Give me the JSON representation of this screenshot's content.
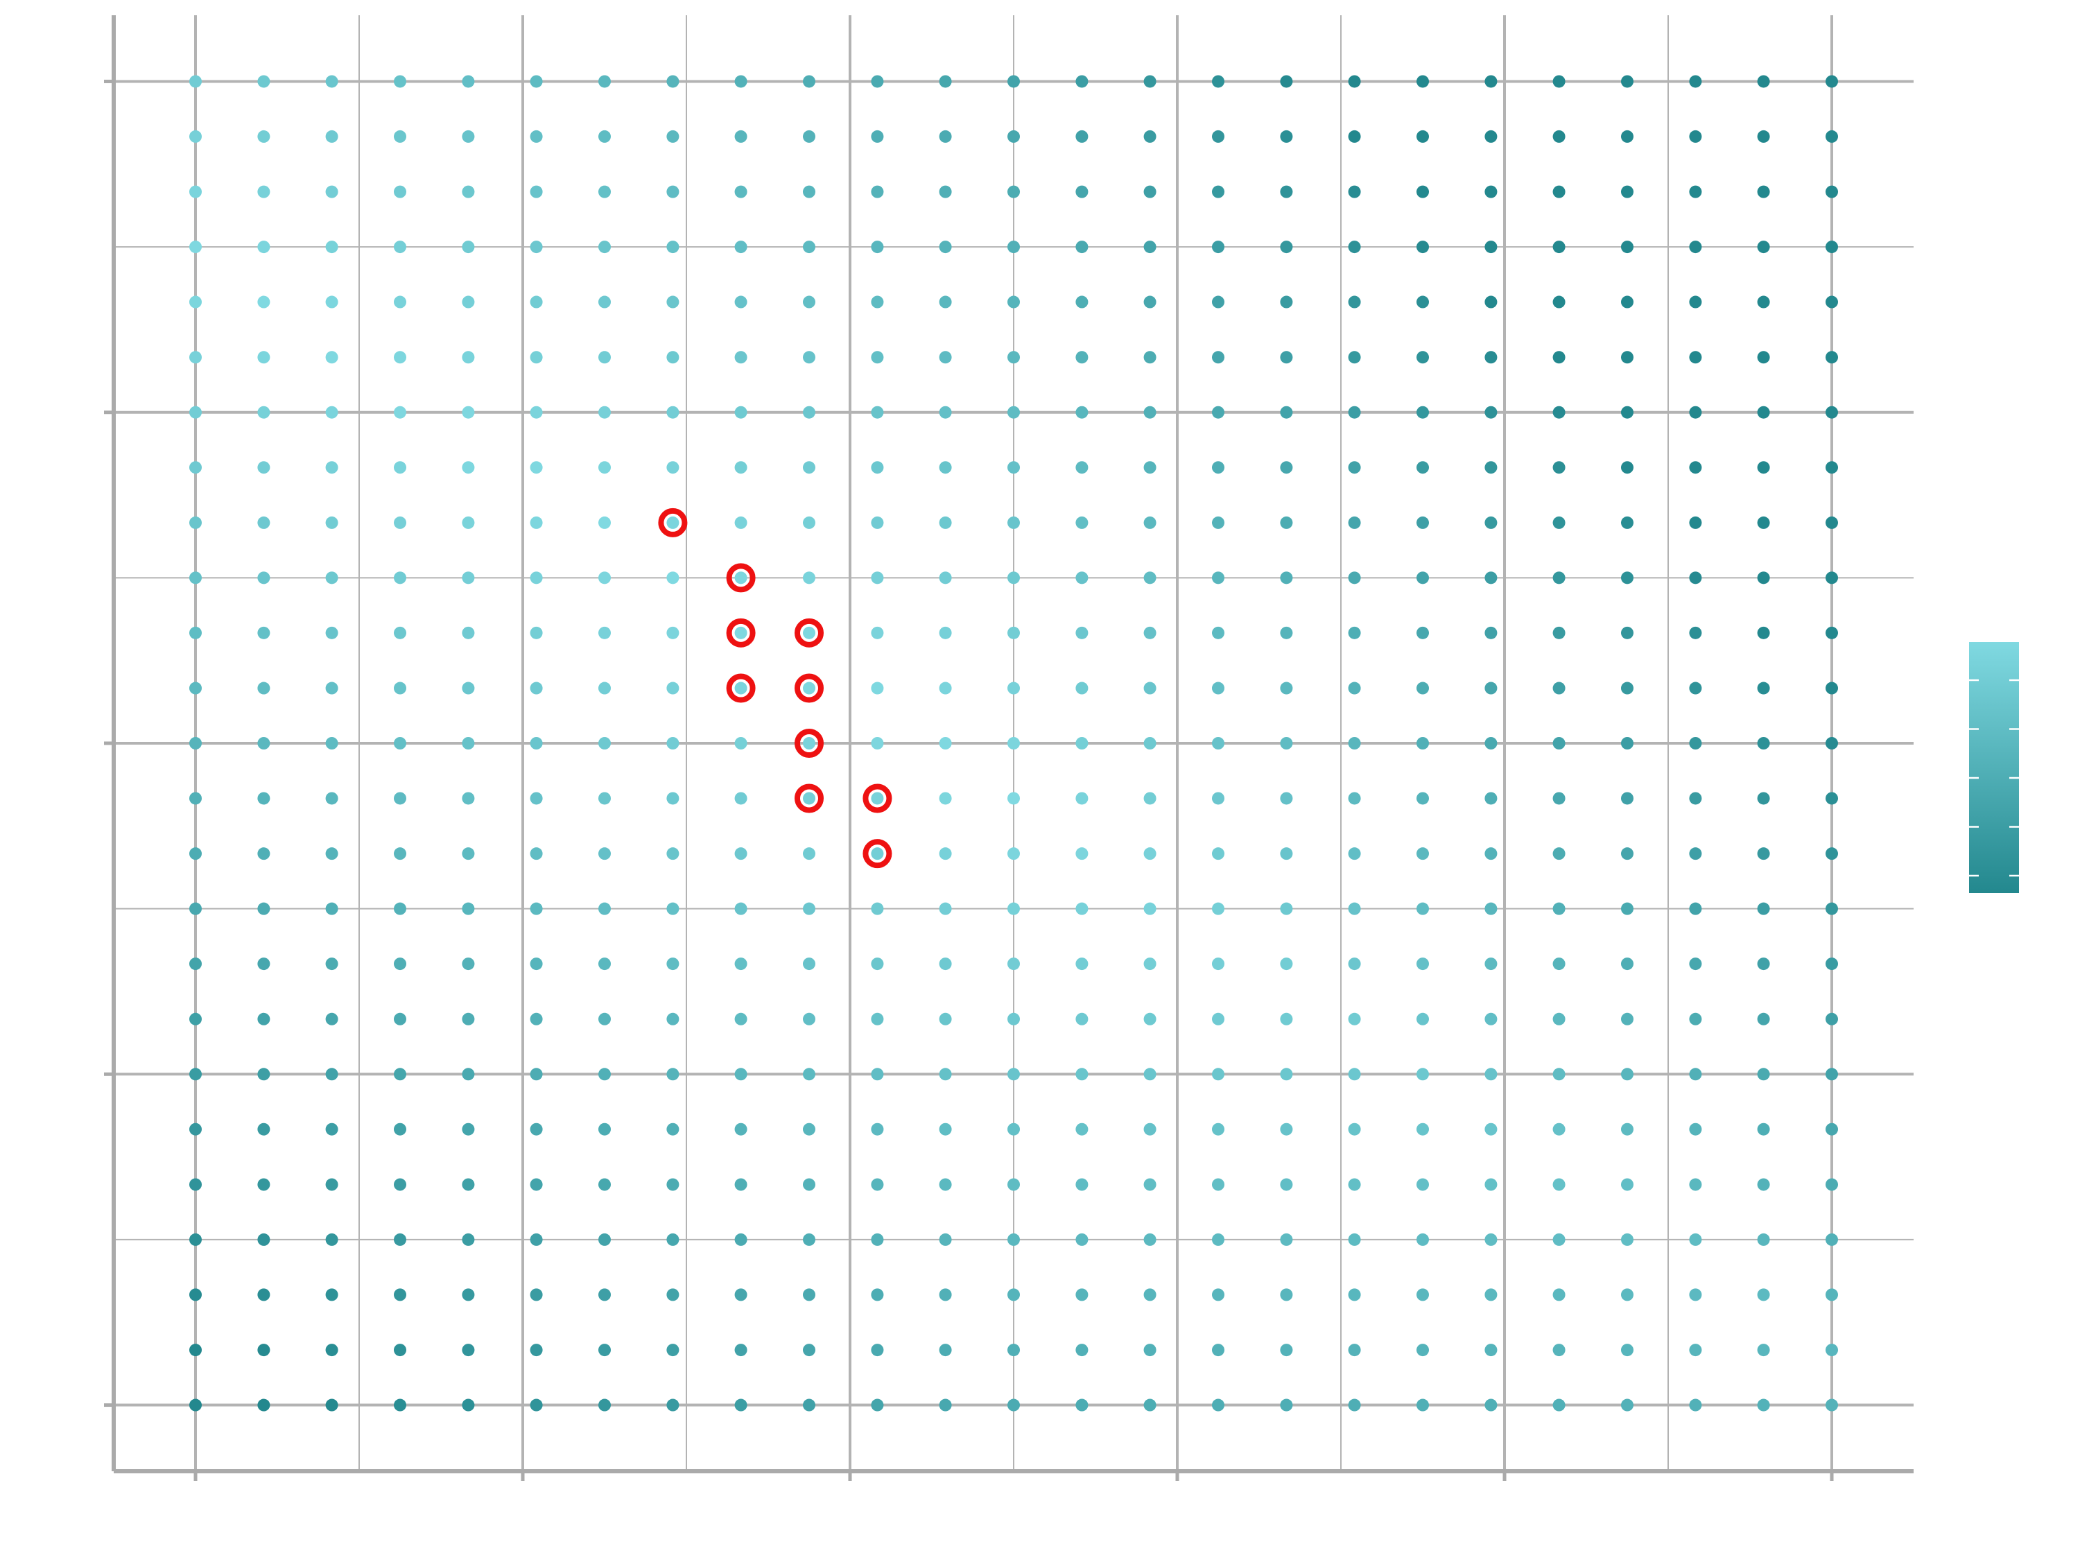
{
  "chart_data": {
    "type": "scatter",
    "title": "",
    "xlabel": "",
    "ylabel": "",
    "x": [
      -3.0,
      -2.583,
      -2.167,
      -1.75,
      -1.333,
      -0.917,
      -0.5,
      -0.083,
      0.333,
      0.75,
      1.167,
      1.583,
      2.0,
      2.417,
      2.833,
      3.25,
      3.667,
      4.083,
      4.5,
      4.917,
      5.333,
      5.75,
      6.167,
      6.583,
      7.0
    ],
    "y": [
      -3.0,
      -2.667,
      -2.333,
      -2.0,
      -1.667,
      -1.333,
      -1.0,
      -0.667,
      -0.333,
      0.0,
      0.333,
      0.667,
      1.0,
      1.333,
      1.667,
      2.0,
      2.333,
      2.667,
      3.0,
      3.333,
      3.667,
      4.0,
      4.333,
      4.667,
      5.0
    ],
    "xlim": [
      -3.5,
      7.5
    ],
    "ylim": [
      -3.4,
      5.4
    ],
    "x_major_ticks": [
      -3,
      -1,
      1,
      3,
      5,
      7
    ],
    "x_minor_ticks": [
      -2,
      0,
      2,
      4,
      6
    ],
    "y_major_ticks": [
      -3,
      -1,
      1,
      3,
      5
    ],
    "y_minor_ticks": [
      -2,
      0,
      2,
      4
    ],
    "grid": true,
    "highlighted_points": [
      [
        -0.083,
        2.333
      ],
      [
        0.333,
        2.0
      ],
      [
        0.333,
        1.667
      ],
      [
        0.75,
        1.667
      ],
      [
        0.333,
        1.333
      ],
      [
        0.75,
        1.333
      ],
      [
        0.75,
        1.0
      ],
      [
        0.75,
        0.667
      ],
      [
        1.167,
        0.667
      ],
      [
        1.167,
        0.333
      ]
    ],
    "colorbar": {
      "position": "right",
      "tick_count": 5,
      "tick_labels": []
    },
    "colors": {
      "low": "#80d9e1",
      "high": "#23888e",
      "highlight": "#ee1111",
      "grid": "#b3b3b3",
      "axis": "#aaaaaa"
    }
  }
}
